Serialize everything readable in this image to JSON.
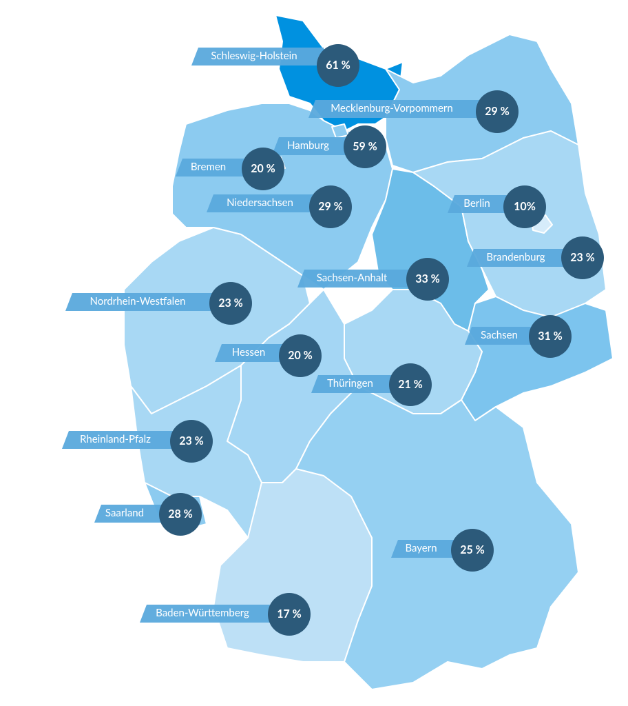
{
  "regions": [
    {
      "label": "Schleswig-Holstein",
      "value": "61 %"
    },
    {
      "label": "Mecklenburg-Vorpommern",
      "value": "29 %"
    },
    {
      "label": "Hamburg",
      "value": "59  %"
    },
    {
      "label": "Bremen",
      "value": "20 %"
    },
    {
      "label": "Niedersachsen",
      "value": "29 %"
    },
    {
      "label": "Berlin",
      "value": "10%"
    },
    {
      "label": "Brandenburg",
      "value": "23 %"
    },
    {
      "label": "Sachsen-Anhalt",
      "value": "33 %"
    },
    {
      "label": "Nordrhein-Westfalen",
      "value": "23 %"
    },
    {
      "label": "Sachsen",
      "value": "31 %"
    },
    {
      "label": "Hessen",
      "value": "20 %"
    },
    {
      "label": "Thüringen",
      "value": "21 %"
    },
    {
      "label": "Rheinland-Pfalz",
      "value": "23 %"
    },
    {
      "label": "Saarland",
      "value": "28 %"
    },
    {
      "label": "Bayern",
      "value": "25 %"
    },
    {
      "label": "Baden-Württemberg",
      "value": "17 %"
    }
  ]
}
